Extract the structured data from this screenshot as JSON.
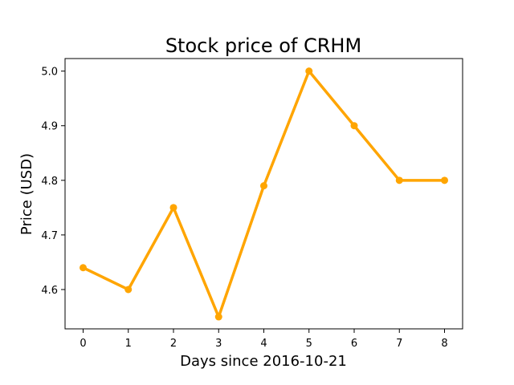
{
  "chart_data": {
    "type": "line",
    "title": "Stock price of CRHM",
    "xlabel": "Days since 2016-10-21",
    "ylabel": "Price (USD)",
    "x": [
      0,
      1,
      2,
      3,
      4,
      5,
      6,
      7,
      8
    ],
    "series": [
      {
        "values": [
          4.64,
          4.6,
          4.75,
          4.55,
          4.79,
          5.0,
          4.9,
          4.8,
          4.8
        ],
        "color": "#FFA500",
        "marker": "circle"
      }
    ],
    "xlim": [
      -0.4,
      8.4
    ],
    "ylim": [
      4.528,
      5.023
    ],
    "xticks": [
      0,
      1,
      2,
      3,
      4,
      5,
      6,
      7,
      8
    ],
    "yticks": [
      4.6,
      4.7,
      4.8,
      4.9,
      5.0
    ],
    "yticklabels": [
      "4.6",
      "4.7",
      "4.8",
      "4.9",
      "5.0"
    ],
    "grid": false,
    "legend": "none"
  }
}
